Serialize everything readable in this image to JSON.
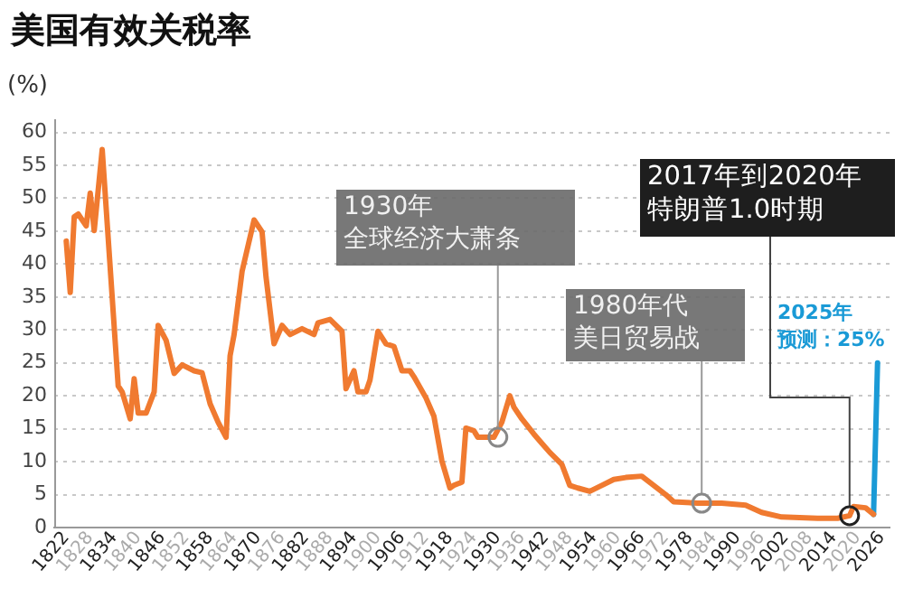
{
  "chart_data": {
    "type": "line",
    "title": "美国有效关税率",
    "ylabel": "(%)",
    "xlim": [
      1819,
      2028
    ],
    "xticks": [
      1822,
      1828,
      1834,
      1840,
      1846,
      1852,
      1858,
      1864,
      1870,
      1876,
      1882,
      1888,
      1894,
      1900,
      1906,
      1912,
      1918,
      1924,
      1930,
      1936,
      1942,
      1948,
      1954,
      1960,
      1966,
      1972,
      1978,
      1984,
      1990,
      1996,
      2002,
      2008,
      2014,
      2020,
      2026
    ],
    "ylim": [
      0,
      62
    ],
    "yticks": [
      0,
      5,
      10,
      15,
      20,
      25,
      30,
      35,
      40,
      45,
      50,
      55,
      60
    ],
    "grid": "y",
    "legend": false,
    "marker": "none",
    "line_style": "solid",
    "series": [
      {
        "color": "#f07a30",
        "x": [
          1822,
          1823,
          1824,
          1825,
          1827,
          1828,
          1829,
          1831,
          1835,
          1836,
          1838,
          1839,
          1840,
          1842,
          1844,
          1845,
          1847,
          1849,
          1851,
          1854,
          1856,
          1858,
          1860,
          1862,
          1863,
          1864,
          1866,
          1869,
          1871,
          1872,
          1874,
          1876,
          1878,
          1881,
          1884,
          1885,
          1888,
          1891,
          1892,
          1894,
          1895,
          1897,
          1898,
          1900,
          1902,
          1904,
          1906,
          1908,
          1909,
          1912,
          1914,
          1916,
          1918,
          1919,
          1921,
          1922,
          1924,
          1925,
          1929,
          1931,
          1933,
          1934,
          1936,
          1939,
          1941,
          1943,
          1946,
          1948,
          1950,
          1953,
          1956,
          1959,
          1962,
          1966,
          1969,
          1972,
          1974,
          1980,
          1986,
          1992,
          1996,
          2001,
          2010,
          2015,
          2018,
          2019,
          2022,
          2024
        ],
        "values": [
          43.5,
          35.7,
          47.2,
          47.6,
          45.8,
          50.8,
          45.1,
          57.4,
          21.5,
          20.6,
          16.5,
          22.6,
          17.4,
          17.4,
          20.6,
          30.7,
          28.4,
          23.4,
          24.7,
          23.8,
          23.5,
          18.8,
          16.0,
          13.7,
          26.1,
          29.3,
          38.9,
          46.7,
          44.9,
          38.0,
          27.9,
          30.7,
          29.3,
          30.2,
          29.3,
          31.1,
          31.6,
          29.8,
          21.1,
          23.8,
          20.6,
          20.6,
          22.4,
          29.8,
          27.9,
          27.5,
          23.8,
          23.8,
          22.9,
          19.7,
          16.9,
          10.1,
          6.0,
          6.4,
          6.9,
          15.1,
          14.7,
          13.7,
          13.7,
          16.0,
          20.0,
          18.3,
          16.5,
          14.2,
          12.8,
          11.4,
          9.6,
          6.4,
          6.0,
          5.5,
          6.4,
          7.3,
          7.6,
          7.8,
          6.4,
          5.0,
          3.9,
          3.7,
          3.7,
          3.4,
          2.3,
          1.6,
          1.4,
          1.4,
          1.8,
          3.2,
          3.0,
          2.0
        ]
      },
      {
        "color": "#1a9ad6",
        "x": [
          2024,
          2025
        ],
        "values": [
          2.0,
          25
        ]
      }
    ],
    "annotations": [
      {
        "text": "1930年全球经济大萧条",
        "x": 1930,
        "y": 13.7
      },
      {
        "text": "1980年代美日贸易战",
        "x": 1981,
        "y": 3.7
      },
      {
        "text": "2017年到2020年特朗普1.0时期",
        "x": 2018,
        "y": 1.8
      },
      {
        "text": "2025年预测：25%",
        "x": 2025,
        "y": 25
      }
    ]
  }
}
